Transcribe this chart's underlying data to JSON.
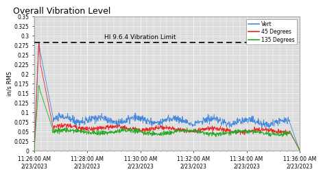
{
  "title": "Overall Vibration Level",
  "ylabel": "in/s RMS",
  "ylim": [
    0,
    0.35
  ],
  "ytick_values": [
    0,
    0.025,
    0.05,
    0.075,
    0.1,
    0.125,
    0.15,
    0.175,
    0.2,
    0.225,
    0.25,
    0.275,
    0.3,
    0.325,
    0.35
  ],
  "ytick_labels": [
    "0",
    "0.025",
    "0.05",
    "0.075",
    "0.1",
    "0.125",
    "0.15",
    "0.175",
    "0.2",
    "0.225",
    "0.25",
    "0.275",
    "0.3",
    "0.325",
    "0.35"
  ],
  "hline_value": 0.2825,
  "hline_label": "HI 9.6.4 Vibration Limit",
  "legend_labels": [
    "Vert",
    "45 Degrees",
    "135 Degrees"
  ],
  "line_colors": [
    "#4488DD",
    "#EE2222",
    "#22AA22"
  ],
  "n_points": 1000,
  "xtick_labels": [
    "11:26:00 AM\n2/23/2023",
    "11:28:00 AM\n2/23/2023",
    "11:30:00 AM\n2/23/2023",
    "11:32:00 AM\n2/23/2023",
    "11:34:00 AM\n2/23/2023",
    "11:36:00 AM\n2/23/2023"
  ],
  "fig_bg": "#FFFFFF",
  "ax_bg": "#D8D8D8",
  "grid_color": "#FFFFFF",
  "title_fontsize": 9,
  "axis_label_fontsize": 6,
  "tick_fontsize": 5.5,
  "legend_fontsize": 5.5
}
